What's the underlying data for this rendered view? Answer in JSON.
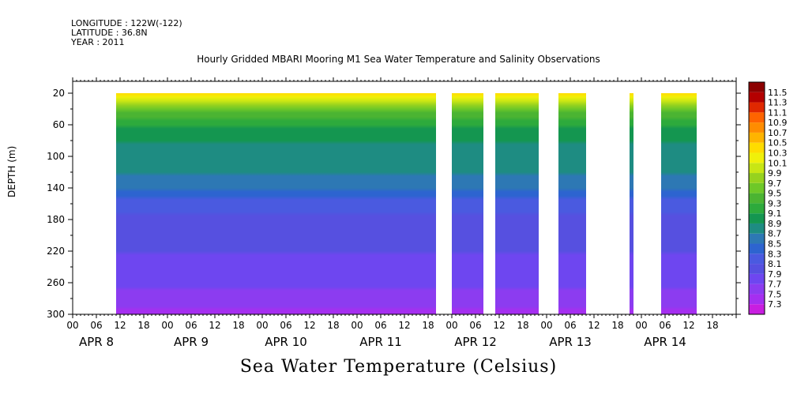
{
  "header": {
    "longitude": "LONGITUDE : 122W(-122)",
    "latitude": "LATITUDE : 36.8N",
    "year": "YEAR : 2011"
  },
  "title": "Hourly Gridded MBARI Mooring M1 Sea Water Temperature and Salinity Observations",
  "bottom_title": "Sea Water Temperature (Celsius)",
  "chart_data": {
    "type": "heatmap",
    "title": "Hourly Gridded MBARI Mooring M1 Sea Water Temperature and Salinity Observations",
    "xlabel": "",
    "ylabel": "DEPTH (m)",
    "colorbar_label": "Sea Water Temperature (Celsius)",
    "x_range_hours": [
      0,
      168
    ],
    "depth_range": [
      5,
      300
    ],
    "y_ticks": [
      20,
      60,
      100,
      140,
      180,
      220,
      260,
      300
    ],
    "x_hour_ticks": [
      "00",
      "06",
      "12",
      "18",
      "00",
      "06",
      "12",
      "18",
      "00",
      "06",
      "12",
      "18",
      "00",
      "06",
      "12",
      "18",
      "00",
      "06",
      "12",
      "18",
      "00",
      "06",
      "12",
      "18",
      "00",
      "06",
      "12",
      "18"
    ],
    "days": [
      "APR  8",
      "APR  9",
      "APR 10",
      "APR 11",
      "APR 12",
      "APR 13",
      "APR 14"
    ],
    "data_segments_hours": [
      [
        11,
        92
      ],
      [
        96,
        104
      ],
      [
        107,
        118
      ],
      [
        123,
        130
      ],
      [
        141,
        142
      ],
      [
        149,
        158
      ]
    ],
    "colorbar_levels": [
      7.3,
      7.5,
      7.7,
      7.9,
      8.1,
      8.3,
      8.5,
      8.7,
      8.9,
      9.1,
      9.3,
      9.5,
      9.7,
      9.9,
      10.1,
      10.3,
      10.5,
      10.7,
      10.9,
      11.1,
      11.3,
      11.5
    ],
    "colorbar_colors": [
      "#c81ee0",
      "#a52ff0",
      "#8c3cf0",
      "#6e46f0",
      "#5650e0",
      "#4a5ae0",
      "#2d64d0",
      "#2d78b4",
      "#1e8c82",
      "#149650",
      "#2daa3c",
      "#4bb432",
      "#6ec828",
      "#96d21e",
      "#c8e614",
      "#f0f00a",
      "#ffdc00",
      "#ffb400",
      "#ff8c00",
      "#ff6400",
      "#e02800",
      "#b40000",
      "#8c0000"
    ],
    "temperature_profile": [
      {
        "depth": 20,
        "temp": 10.4
      },
      {
        "depth": 30,
        "temp": 9.9
      },
      {
        "depth": 40,
        "temp": 9.5
      },
      {
        "depth": 60,
        "temp": 9.1
      },
      {
        "depth": 80,
        "temp": 8.9
      },
      {
        "depth": 100,
        "temp": 8.8
      },
      {
        "depth": 120,
        "temp": 8.7
      },
      {
        "depth": 140,
        "temp": 8.5
      },
      {
        "depth": 160,
        "temp": 8.2
      },
      {
        "depth": 180,
        "temp": 8.0
      },
      {
        "depth": 220,
        "temp": 7.9
      },
      {
        "depth": 260,
        "temp": 7.75
      },
      {
        "depth": 280,
        "temp": 7.6
      },
      {
        "depth": 300,
        "temp": 7.4
      }
    ]
  }
}
